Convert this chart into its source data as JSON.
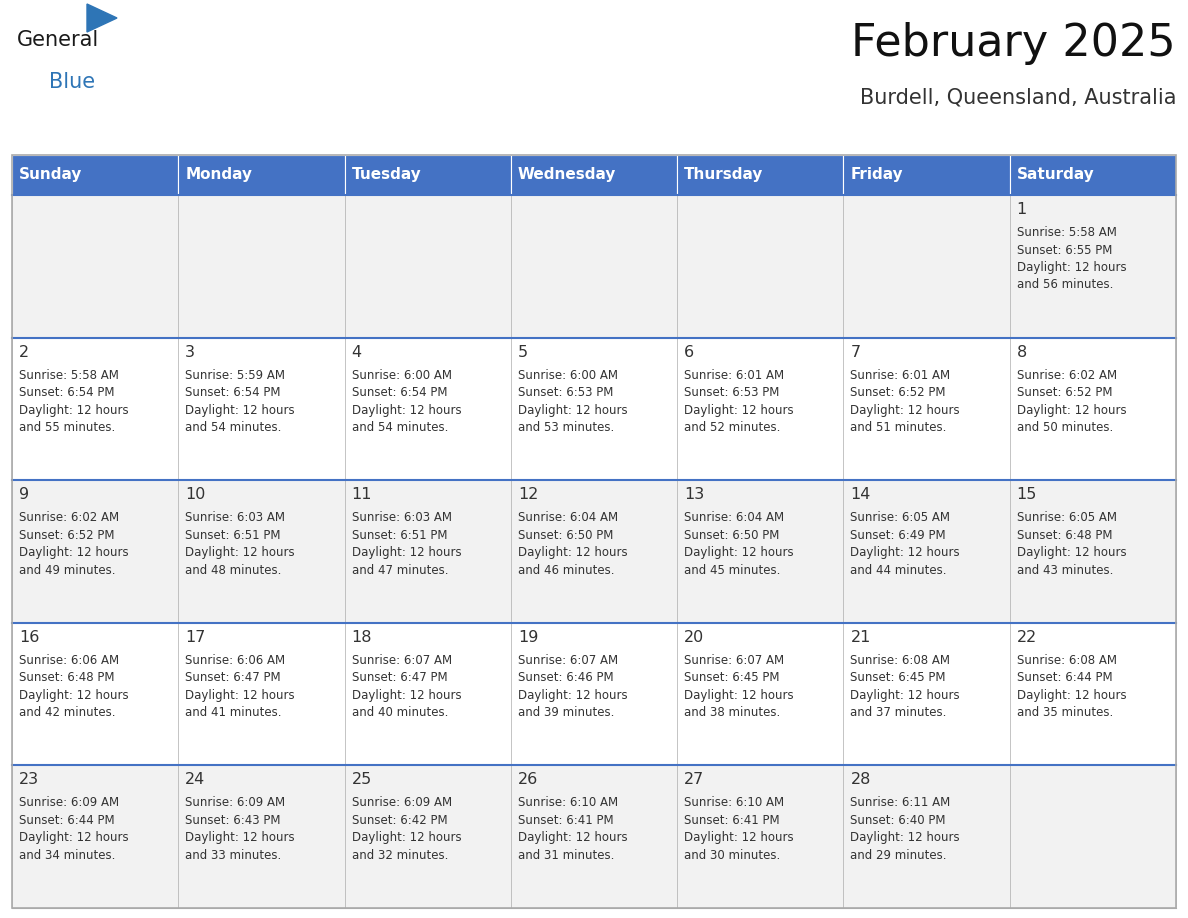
{
  "title": "February 2025",
  "subtitle": "Burdell, Queensland, Australia",
  "header_bg": "#4472C4",
  "header_text_color": "#FFFFFF",
  "day_names": [
    "Sunday",
    "Monday",
    "Tuesday",
    "Wednesday",
    "Thursday",
    "Friday",
    "Saturday"
  ],
  "cell_bg_light": "#F2F2F2",
  "cell_bg_white": "#FFFFFF",
  "cell_border_color": "#AAAAAA",
  "row_separator_color": "#4472C4",
  "date_color": "#333333",
  "info_color": "#333333",
  "title_color": "#111111",
  "subtitle_color": "#333333",
  "logo_general_color": "#1a1a1a",
  "logo_blue_color": "#2E75B6",
  "figwidth": 11.88,
  "figheight": 9.18,
  "dpi": 100,
  "days": [
    {
      "date": 1,
      "col": 6,
      "row": 0,
      "sunrise": "5:58 AM",
      "sunset": "6:55 PM",
      "daylight_hours": 12,
      "daylight_minutes": 56
    },
    {
      "date": 2,
      "col": 0,
      "row": 1,
      "sunrise": "5:58 AM",
      "sunset": "6:54 PM",
      "daylight_hours": 12,
      "daylight_minutes": 55
    },
    {
      "date": 3,
      "col": 1,
      "row": 1,
      "sunrise": "5:59 AM",
      "sunset": "6:54 PM",
      "daylight_hours": 12,
      "daylight_minutes": 54
    },
    {
      "date": 4,
      "col": 2,
      "row": 1,
      "sunrise": "6:00 AM",
      "sunset": "6:54 PM",
      "daylight_hours": 12,
      "daylight_minutes": 54
    },
    {
      "date": 5,
      "col": 3,
      "row": 1,
      "sunrise": "6:00 AM",
      "sunset": "6:53 PM",
      "daylight_hours": 12,
      "daylight_minutes": 53
    },
    {
      "date": 6,
      "col": 4,
      "row": 1,
      "sunrise": "6:01 AM",
      "sunset": "6:53 PM",
      "daylight_hours": 12,
      "daylight_minutes": 52
    },
    {
      "date": 7,
      "col": 5,
      "row": 1,
      "sunrise": "6:01 AM",
      "sunset": "6:52 PM",
      "daylight_hours": 12,
      "daylight_minutes": 51
    },
    {
      "date": 8,
      "col": 6,
      "row": 1,
      "sunrise": "6:02 AM",
      "sunset": "6:52 PM",
      "daylight_hours": 12,
      "daylight_minutes": 50
    },
    {
      "date": 9,
      "col": 0,
      "row": 2,
      "sunrise": "6:02 AM",
      "sunset": "6:52 PM",
      "daylight_hours": 12,
      "daylight_minutes": 49
    },
    {
      "date": 10,
      "col": 1,
      "row": 2,
      "sunrise": "6:03 AM",
      "sunset": "6:51 PM",
      "daylight_hours": 12,
      "daylight_minutes": 48
    },
    {
      "date": 11,
      "col": 2,
      "row": 2,
      "sunrise": "6:03 AM",
      "sunset": "6:51 PM",
      "daylight_hours": 12,
      "daylight_minutes": 47
    },
    {
      "date": 12,
      "col": 3,
      "row": 2,
      "sunrise": "6:04 AM",
      "sunset": "6:50 PM",
      "daylight_hours": 12,
      "daylight_minutes": 46
    },
    {
      "date": 13,
      "col": 4,
      "row": 2,
      "sunrise": "6:04 AM",
      "sunset": "6:50 PM",
      "daylight_hours": 12,
      "daylight_minutes": 45
    },
    {
      "date": 14,
      "col": 5,
      "row": 2,
      "sunrise": "6:05 AM",
      "sunset": "6:49 PM",
      "daylight_hours": 12,
      "daylight_minutes": 44
    },
    {
      "date": 15,
      "col": 6,
      "row": 2,
      "sunrise": "6:05 AM",
      "sunset": "6:48 PM",
      "daylight_hours": 12,
      "daylight_minutes": 43
    },
    {
      "date": 16,
      "col": 0,
      "row": 3,
      "sunrise": "6:06 AM",
      "sunset": "6:48 PM",
      "daylight_hours": 12,
      "daylight_minutes": 42
    },
    {
      "date": 17,
      "col": 1,
      "row": 3,
      "sunrise": "6:06 AM",
      "sunset": "6:47 PM",
      "daylight_hours": 12,
      "daylight_minutes": 41
    },
    {
      "date": 18,
      "col": 2,
      "row": 3,
      "sunrise": "6:07 AM",
      "sunset": "6:47 PM",
      "daylight_hours": 12,
      "daylight_minutes": 40
    },
    {
      "date": 19,
      "col": 3,
      "row": 3,
      "sunrise": "6:07 AM",
      "sunset": "6:46 PM",
      "daylight_hours": 12,
      "daylight_minutes": 39
    },
    {
      "date": 20,
      "col": 4,
      "row": 3,
      "sunrise": "6:07 AM",
      "sunset": "6:45 PM",
      "daylight_hours": 12,
      "daylight_minutes": 38
    },
    {
      "date": 21,
      "col": 5,
      "row": 3,
      "sunrise": "6:08 AM",
      "sunset": "6:45 PM",
      "daylight_hours": 12,
      "daylight_minutes": 37
    },
    {
      "date": 22,
      "col": 6,
      "row": 3,
      "sunrise": "6:08 AM",
      "sunset": "6:44 PM",
      "daylight_hours": 12,
      "daylight_minutes": 35
    },
    {
      "date": 23,
      "col": 0,
      "row": 4,
      "sunrise": "6:09 AM",
      "sunset": "6:44 PM",
      "daylight_hours": 12,
      "daylight_minutes": 34
    },
    {
      "date": 24,
      "col": 1,
      "row": 4,
      "sunrise": "6:09 AM",
      "sunset": "6:43 PM",
      "daylight_hours": 12,
      "daylight_minutes": 33
    },
    {
      "date": 25,
      "col": 2,
      "row": 4,
      "sunrise": "6:09 AM",
      "sunset": "6:42 PM",
      "daylight_hours": 12,
      "daylight_minutes": 32
    },
    {
      "date": 26,
      "col": 3,
      "row": 4,
      "sunrise": "6:10 AM",
      "sunset": "6:41 PM",
      "daylight_hours": 12,
      "daylight_minutes": 31
    },
    {
      "date": 27,
      "col": 4,
      "row": 4,
      "sunrise": "6:10 AM",
      "sunset": "6:41 PM",
      "daylight_hours": 12,
      "daylight_minutes": 30
    },
    {
      "date": 28,
      "col": 5,
      "row": 4,
      "sunrise": "6:11 AM",
      "sunset": "6:40 PM",
      "daylight_hours": 12,
      "daylight_minutes": 29
    }
  ]
}
